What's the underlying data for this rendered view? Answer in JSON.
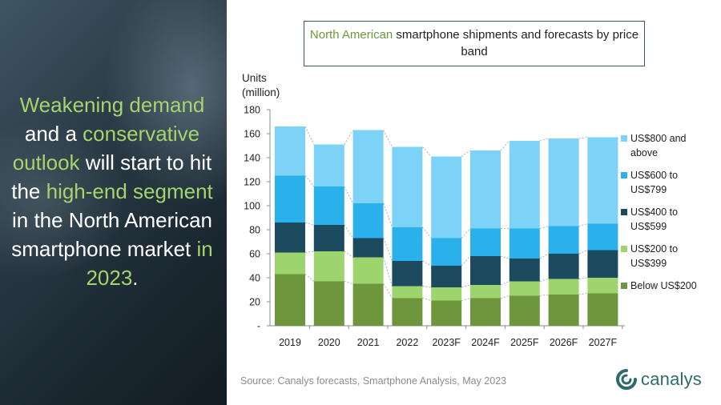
{
  "headline": {
    "p1": "Weakening demand",
    "p2": " and a ",
    "p3": "conservative outlook",
    "p4": " will start to hit the ",
    "p5": "high-end segment",
    "p6": " in the North American smartphone market ",
    "p7": "in 2023",
    "p8": "."
  },
  "title": {
    "accent": "North American",
    "rest": " smartphone shipments and forecasts by price band"
  },
  "source": "Source:  Canalys forecasts, Smartphone Analysis, May 2023",
  "logo_text": "canalys",
  "colors": {
    "below_200": "#6e963d",
    "200_399": "#9dd46e",
    "400_599": "#1c4a5e",
    "600_799": "#2ab0ea",
    "800_above": "#7dd3f7",
    "panel": "#22323c",
    "accent_text": "#a5d36c",
    "logo": "#2e6b6d"
  },
  "chart_data": {
    "type": "bar",
    "stacked": true,
    "ylabel_line1": "Units",
    "ylabel_line2": "(million)",
    "ylim": [
      0,
      180
    ],
    "yticks": [
      "-",
      "20",
      "40",
      "60",
      "80",
      "100",
      "120",
      "140",
      "160",
      "180"
    ],
    "categories": [
      "2019",
      "2020",
      "2021",
      "2022",
      "2023F",
      "2024F",
      "2025F",
      "2026F",
      "2027F"
    ],
    "series": [
      {
        "name": "Below US$200",
        "color": "#6e963d",
        "values": [
          43,
          37,
          35,
          23,
          21,
          23,
          25,
          26,
          27
        ]
      },
      {
        "name": "US$200 to US$399",
        "color": "#9dd46e",
        "values": [
          18,
          25,
          22,
          10,
          11,
          11,
          12,
          13,
          13
        ]
      },
      {
        "name": "US$400 to US$599",
        "color": "#1c4a5e",
        "values": [
          25,
          22,
          16,
          21,
          18,
          24,
          19,
          21,
          23
        ]
      },
      {
        "name": "US$600 to US$799",
        "color": "#2ab0ea",
        "values": [
          39,
          32,
          29,
          28,
          23,
          23,
          25,
          23,
          22
        ]
      },
      {
        "name": "US$800 and above",
        "color": "#7dd3f7",
        "values": [
          41,
          35,
          61,
          67,
          68,
          65,
          73,
          73,
          72
        ]
      }
    ],
    "legend": [
      {
        "line1": "US$800 and",
        "line2": "above",
        "color": "#7dd3f7"
      },
      {
        "line1": "US$600 to",
        "line2": "US$799",
        "color": "#2ab0ea"
      },
      {
        "line1": "US$400 to",
        "line2": "US$599",
        "color": "#1c4a5e"
      },
      {
        "line1": "US$200 to",
        "line2": "US$399",
        "color": "#9dd46e"
      },
      {
        "line1": "Below US$200",
        "line2": "",
        "color": "#6e963d"
      }
    ],
    "legend_position": "right",
    "connector_lines": true,
    "grid": false
  }
}
